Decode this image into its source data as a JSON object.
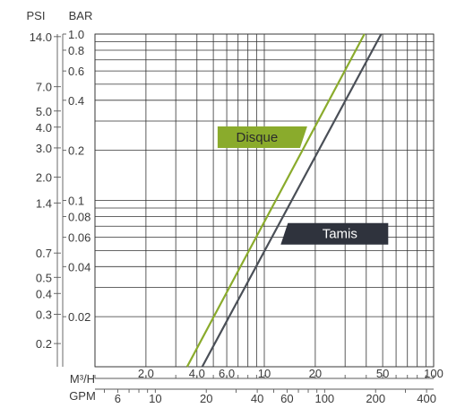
{
  "chart_data": {
    "type": "line",
    "title": "",
    "axes": {
      "y_left_unit": "PSI",
      "y_right_unit": "BAR",
      "x_top_unit": "M³/H",
      "x_bottom_unit": "GPM",
      "scale": "log-log",
      "bar_range": [
        0.01,
        1.0
      ],
      "m3h_range": [
        1.0,
        100
      ],
      "grid": true
    },
    "psi_ticks": [
      "14.0",
      "7.0",
      "5.0",
      "4.0",
      "3.0",
      "2.0",
      "1.4",
      "0.7",
      "0.5",
      "0.4",
      "0.3",
      "0.2"
    ],
    "psi_tick_values": [
      14.0,
      7.0,
      5.0,
      4.0,
      3.0,
      2.0,
      1.4,
      0.7,
      0.5,
      0.4,
      0.3,
      0.2
    ],
    "bar_ticks": [
      "1.0",
      "0.8",
      "0.6",
      "0.4",
      "0.2",
      "0.1",
      "0.08",
      "0.06",
      "0.04",
      "0.02"
    ],
    "bar_tick_values": [
      1.0,
      0.8,
      0.6,
      0.4,
      0.2,
      0.1,
      0.08,
      0.06,
      0.04,
      0.02
    ],
    "m3h_ticks": [
      "2.0",
      "4.0",
      "6.0",
      "10",
      "20",
      "50",
      "100"
    ],
    "m3h_tick_values": [
      2.0,
      4.0,
      6.0,
      10,
      20,
      50,
      100
    ],
    "gpm_ticks": [
      "6",
      "10",
      "20",
      "40",
      "60",
      "100",
      "200",
      "400"
    ],
    "gpm_tick_values": [
      6,
      10,
      20,
      40,
      60,
      100,
      200,
      400
    ],
    "series": [
      {
        "name": "Disque",
        "color": "#8aab2c",
        "points": [
          {
            "m3h": 3.5,
            "bar": 0.01
          },
          {
            "m3h": 39.0,
            "bar": 1.0
          }
        ],
        "label_anchor": {
          "m3h": 5.3,
          "bar": 0.24
        }
      },
      {
        "name": "Tamis",
        "color": "#4a4f57",
        "points": [
          {
            "m3h": 4.3,
            "bar": 0.01
          },
          {
            "m3h": 49.0,
            "bar": 1.0
          }
        ],
        "label_anchor": {
          "m3h": 12.5,
          "bar": 0.063
        }
      }
    ],
    "colors": {
      "axis": "#5a5a5a",
      "grid": "#333333",
      "disque_label_bg": "#8aab2c",
      "tamis_label_bg": "#2f333d",
      "label_text_dark": "#2b2b2b",
      "label_text_light": "#ffffff"
    }
  }
}
